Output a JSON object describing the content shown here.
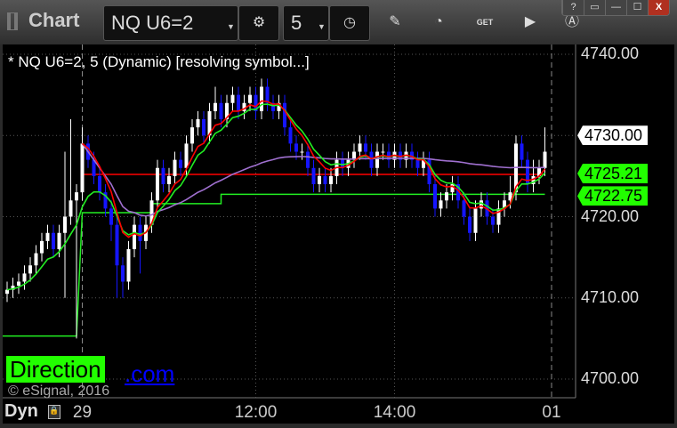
{
  "window": {
    "title": "Chart",
    "buttons": [
      "?",
      "▭",
      "—",
      "☐",
      "X"
    ]
  },
  "toolbar": {
    "symbol": "NQ U6=2",
    "interval": "5",
    "icons": [
      "gear-icon",
      "clock-icon",
      "pencil-icon",
      "chart-style-icon",
      "get-icon",
      "play-icon",
      "alert-icon"
    ]
  },
  "legend": "* NQ U6=2, 5 (Dynamic) [resolving symbol...]",
  "watermark": {
    "logo": "Direction",
    "link": ".com",
    "copyright": "© eSignal, 2016"
  },
  "bottom": {
    "mode": "Dyn"
  },
  "colors": {
    "up": "#ffffff",
    "down": "#1515ff",
    "ema_fast": "#ff0000",
    "ema_slow": "#22ee22",
    "avg": "#a070d0",
    "tag_green": "#22ff00"
  },
  "chart_data": {
    "type": "candlestick",
    "interval": "5 min",
    "y_ticks": [
      4700,
      4710,
      4720,
      4730,
      4740
    ],
    "y_tick_labels": [
      "4700.00",
      "4710.00",
      "4720.00",
      "4730.00",
      "4740.00"
    ],
    "ylim": [
      4698.5,
      4741
    ],
    "x_ticks": [
      {
        "bar": 13,
        "label": "29"
      },
      {
        "bar": 43,
        "label": "12:00"
      },
      {
        "bar": 67,
        "label": "14:00"
      },
      {
        "bar": 94,
        "label": "01"
      }
    ],
    "price_tags": [
      {
        "value": "4730.00",
        "style": "white"
      },
      {
        "value": "4725.21",
        "style": "green"
      },
      {
        "value": "4722.75",
        "style": "green"
      }
    ],
    "levels": [
      {
        "name": "red-level",
        "value": 4725.21,
        "from": 13,
        "to": 93,
        "color": "#ff0000"
      },
      {
        "name": "green-level",
        "steps": [
          [
            0,
            12,
            4705.3
          ],
          [
            13,
            25,
            4720.5
          ],
          [
            25,
            37,
            4721.6
          ],
          [
            37,
            93,
            4722.75
          ]
        ],
        "color": "#22ee22"
      }
    ],
    "session_start": 13,
    "ohlc": [
      [
        4710.5,
        4712,
        4709.5,
        4711
      ],
      [
        4711,
        4712.5,
        4710,
        4711.5
      ],
      [
        4711.5,
        4713,
        4710.5,
        4712
      ],
      [
        4712,
        4714,
        4711,
        4713
      ],
      [
        4713,
        4715,
        4712,
        4714
      ],
      [
        4714,
        4716.5,
        4713,
        4715.5
      ],
      [
        4715.5,
        4718,
        4714.5,
        4717
      ],
      [
        4717,
        4719,
        4716,
        4718
      ],
      [
        4718,
        4719,
        4715,
        4716
      ],
      [
        4716,
        4719,
        4715,
        4718
      ],
      [
        4718,
        4728,
        4710,
        4720
      ],
      [
        4720,
        4732,
        4719,
        4722
      ],
      [
        4722,
        4724,
        4705,
        4723
      ],
      [
        4723,
        4731,
        4722,
        4729
      ],
      [
        4729,
        4730,
        4726,
        4727
      ],
      [
        4727,
        4728,
        4724,
        4725
      ],
      [
        4725,
        4726,
        4722,
        4723
      ],
      [
        4723,
        4724,
        4720,
        4721
      ],
      [
        4721,
        4722,
        4717,
        4719
      ],
      [
        4719,
        4720,
        4710,
        4714
      ],
      [
        4714,
        4715,
        4710,
        4712
      ],
      [
        4712,
        4717,
        4711,
        4716
      ],
      [
        4716,
        4720,
        4715,
        4719
      ],
      [
        4719,
        4720,
        4713,
        4717
      ],
      [
        4717,
        4720,
        4716,
        4719
      ],
      [
        4719,
        4723,
        4718,
        4722
      ],
      [
        4722,
        4727,
        4721,
        4726
      ],
      [
        4726,
        4727,
        4723,
        4724
      ],
      [
        4724,
        4726,
        4723,
        4725
      ],
      [
        4725,
        4728,
        4724,
        4727
      ],
      [
        4727,
        4728,
        4725,
        4726
      ],
      [
        4726,
        4730,
        4725,
        4729
      ],
      [
        4729,
        4732,
        4728,
        4731
      ],
      [
        4731,
        4733,
        4730,
        4732
      ],
      [
        4732,
        4733,
        4729,
        4730
      ],
      [
        4730,
        4734,
        4729,
        4733
      ],
      [
        4733,
        4736,
        4732,
        4734
      ],
      [
        4734,
        4735,
        4731,
        4732
      ],
      [
        4732,
        4735,
        4731,
        4734
      ],
      [
        4734,
        4736,
        4733,
        4735
      ],
      [
        4735,
        4736,
        4732,
        4733
      ],
      [
        4733,
        4735,
        4732,
        4734
      ],
      [
        4734,
        4736,
        4733,
        4735
      ],
      [
        4735,
        4736,
        4732,
        4733
      ],
      [
        4733,
        4737,
        4732,
        4736
      ],
      [
        4736,
        4737,
        4733,
        4734
      ],
      [
        4734,
        4735,
        4732,
        4733
      ],
      [
        4733,
        4735,
        4732,
        4734
      ],
      [
        4734,
        4735,
        4730,
        4731
      ],
      [
        4731,
        4732,
        4728,
        4729
      ],
      [
        4729,
        4730,
        4727,
        4728
      ],
      [
        4728,
        4729,
        4727,
        4728
      ],
      [
        4728,
        4729,
        4725,
        4726
      ],
      [
        4726,
        4727,
        4723,
        4724
      ],
      [
        4724,
        4726,
        4723,
        4725
      ],
      [
        4725,
        4726,
        4723,
        4724
      ],
      [
        4724,
        4726,
        4723,
        4725
      ],
      [
        4725,
        4728,
        4724,
        4727
      ],
      [
        4727,
        4728,
        4725,
        4726
      ],
      [
        4726,
        4728,
        4725,
        4727
      ],
      [
        4727,
        4729,
        4726,
        4728
      ],
      [
        4728,
        4730,
        4727,
        4729
      ],
      [
        4729,
        4730,
        4727,
        4728
      ],
      [
        4728,
        4729,
        4725,
        4726
      ],
      [
        4726,
        4729,
        4725,
        4728
      ],
      [
        4728,
        4729,
        4727,
        4728
      ],
      [
        4728,
        4729,
        4726,
        4727
      ],
      [
        4727,
        4729,
        4726,
        4728
      ],
      [
        4728,
        4729,
        4726,
        4727
      ],
      [
        4727,
        4729,
        4726,
        4728
      ],
      [
        4728,
        4729,
        4726,
        4727
      ],
      [
        4727,
        4728,
        4725,
        4726
      ],
      [
        4726,
        4728,
        4725,
        4727
      ],
      [
        4727,
        4728,
        4723,
        4724
      ],
      [
        4724,
        4725,
        4720,
        4721
      ],
      [
        4721,
        4723,
        4720,
        4722
      ],
      [
        4722,
        4724,
        4721,
        4723
      ],
      [
        4723,
        4725,
        4722,
        4724
      ],
      [
        4724,
        4725,
        4721,
        4722
      ],
      [
        4722,
        4723,
        4719,
        4720
      ],
      [
        4720,
        4721,
        4717,
        4718
      ],
      [
        4718,
        4722,
        4717,
        4721
      ],
      [
        4721,
        4723,
        4720,
        4722
      ],
      [
        4722,
        4723,
        4719,
        4720
      ],
      [
        4720,
        4721,
        4718,
        4719
      ],
      [
        4719,
        4722,
        4718,
        4721
      ],
      [
        4721,
        4723,
        4720,
        4722
      ],
      [
        4722,
        4725,
        4721,
        4723
      ],
      [
        4723,
        4730,
        4722,
        4729
      ],
      [
        4729,
        4730,
        4726,
        4727
      ],
      [
        4727,
        4728,
        4723,
        4724
      ],
      [
        4724,
        4727,
        4723,
        4725
      ],
      [
        4725,
        4727,
        4724,
        4726
      ],
      [
        4726,
        4731,
        4725,
        4728
      ]
    ]
  }
}
